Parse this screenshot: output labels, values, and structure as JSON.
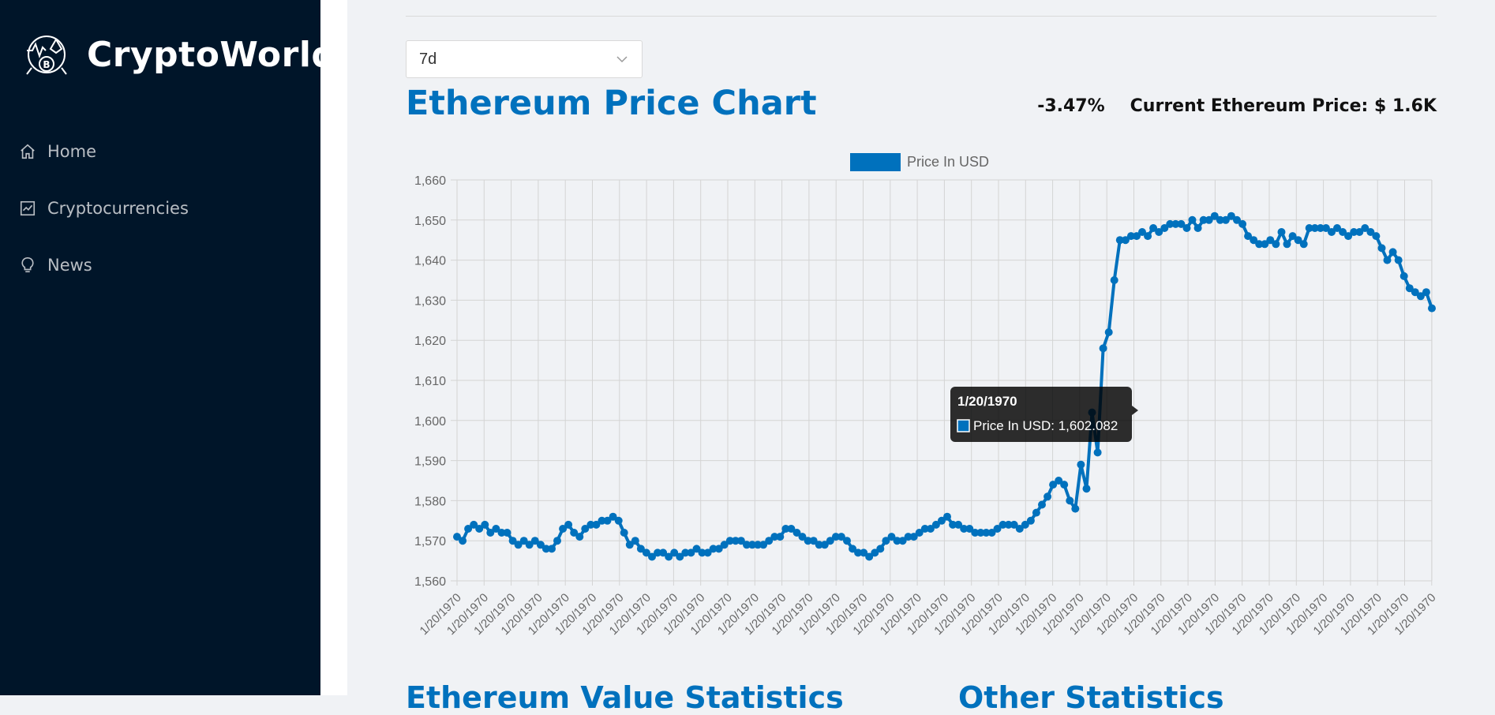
{
  "app": {
    "name": "CryptoWorld"
  },
  "sidebar": {
    "items": [
      {
        "label": "Home",
        "icon": "home-icon"
      },
      {
        "label": "Cryptocurrencies",
        "icon": "line-chart-icon"
      },
      {
        "label": "News",
        "icon": "bulb-icon"
      }
    ]
  },
  "controls": {
    "period_selected": "7d"
  },
  "header": {
    "title": "Ethereum Price Chart",
    "change": "-3.47%",
    "current_price": "Current Ethereum Price: $ 1.6K"
  },
  "tooltip": {
    "title": "1/20/1970",
    "text": "Price In USD: 1,602.082"
  },
  "below": {
    "left_heading": "Ethereum Value Statistics",
    "right_heading": "Other Statistics"
  },
  "colors": {
    "accent": "#0071bd",
    "sidebar": "#001529",
    "background": "#f0f2f5"
  },
  "chart_data": {
    "type": "line",
    "legend": "Price In USD",
    "legend_position": "top-center",
    "grid": true,
    "ylim": [
      1560,
      1660
    ],
    "yticks": [
      "1,560",
      "1,570",
      "1,580",
      "1,590",
      "1,600",
      "1,610",
      "1,620",
      "1,630",
      "1,640",
      "1,650",
      "1,660"
    ],
    "xtick_label": "1/20/1970",
    "xtick_count": 37,
    "series": [
      {
        "name": "Price In USD",
        "values": [
          1571,
          1570,
          1573,
          1574,
          1573,
          1574,
          1572,
          1573,
          1572,
          1572,
          1570,
          1569,
          1570,
          1569,
          1570,
          1569,
          1568,
          1568,
          1570,
          1573,
          1574,
          1572,
          1571,
          1573,
          1574,
          1574,
          1575,
          1575,
          1576,
          1575,
          1572,
          1569,
          1570,
          1568,
          1567,
          1566,
          1567,
          1567,
          1566,
          1567,
          1566,
          1567,
          1567,
          1568,
          1567,
          1567,
          1568,
          1568,
          1569,
          1570,
          1570,
          1570,
          1569,
          1569,
          1569,
          1569,
          1570,
          1571,
          1571,
          1573,
          1573,
          1572,
          1571,
          1570,
          1570,
          1569,
          1569,
          1570,
          1571,
          1571,
          1570,
          1568,
          1567,
          1567,
          1566,
          1567,
          1568,
          1570,
          1571,
          1570,
          1570,
          1571,
          1571,
          1572,
          1573,
          1573,
          1574,
          1575,
          1576,
          1574,
          1574,
          1573,
          1573,
          1572,
          1572,
          1572,
          1572,
          1573,
          1574,
          1574,
          1574,
          1573,
          1574,
          1575,
          1577,
          1579,
          1581,
          1584,
          1585,
          1584,
          1580,
          1578,
          1589,
          1583,
          1602,
          1592,
          1618,
          1622,
          1635,
          1645,
          1645,
          1646,
          1646,
          1647,
          1646,
          1648,
          1647,
          1648,
          1649,
          1649,
          1649,
          1648,
          1650,
          1648,
          1650,
          1650,
          1651,
          1650,
          1650,
          1651,
          1650,
          1649,
          1646,
          1645,
          1644,
          1644,
          1645,
          1644,
          1647,
          1644,
          1646,
          1645,
          1644,
          1648,
          1648,
          1648,
          1648,
          1647,
          1648,
          1647,
          1646,
          1647,
          1647,
          1648,
          1647,
          1646,
          1643,
          1640,
          1642,
          1640,
          1636,
          1633,
          1632,
          1631,
          1632,
          1628
        ]
      }
    ]
  }
}
